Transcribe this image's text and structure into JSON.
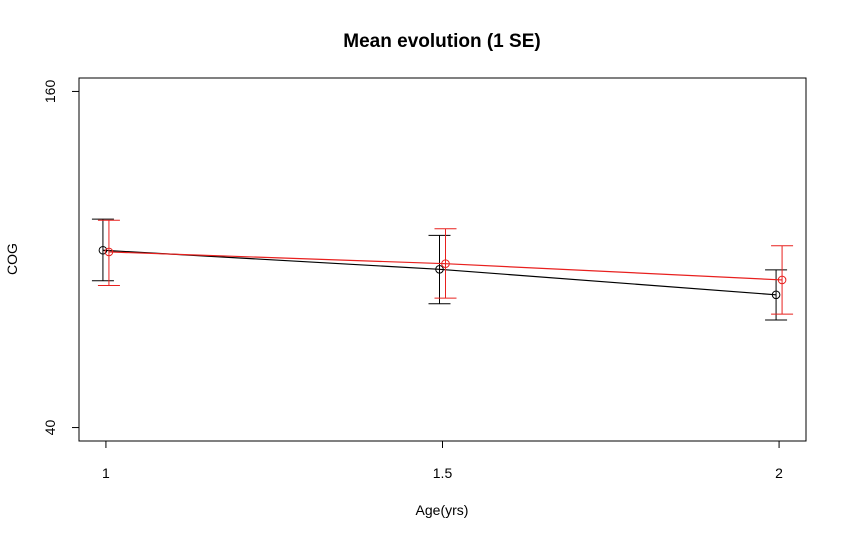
{
  "chart_data": {
    "type": "line",
    "title": "Mean evolution (1 SE)",
    "xlabel": "Age(yrs)",
    "ylabel": "COG",
    "x": [
      1,
      1.5,
      2
    ],
    "x_tick_labels": [
      "1",
      "1.5",
      "2"
    ],
    "y_tick_labels": [
      "40",
      "160"
    ],
    "y_ticks": [
      40,
      160
    ],
    "xlim": [
      0.96,
      2.04
    ],
    "ylim": [
      35.2,
      164.8
    ],
    "series": [
      {
        "color": "#000000",
        "values": [
          103.3,
          96.5,
          87.4
        ],
        "se_lower": [
          92.4,
          84.2,
          78.4
        ],
        "se_upper": [
          114.4,
          108.6,
          96.3
        ]
      },
      {
        "color": "#e8201e",
        "values": [
          102.7,
          98.5,
          92.7
        ],
        "se_lower": [
          90.7,
          86.2,
          80.5
        ],
        "se_upper": [
          114.0,
          111.0,
          104.9
        ]
      }
    ],
    "grid": false,
    "legend": "none"
  }
}
